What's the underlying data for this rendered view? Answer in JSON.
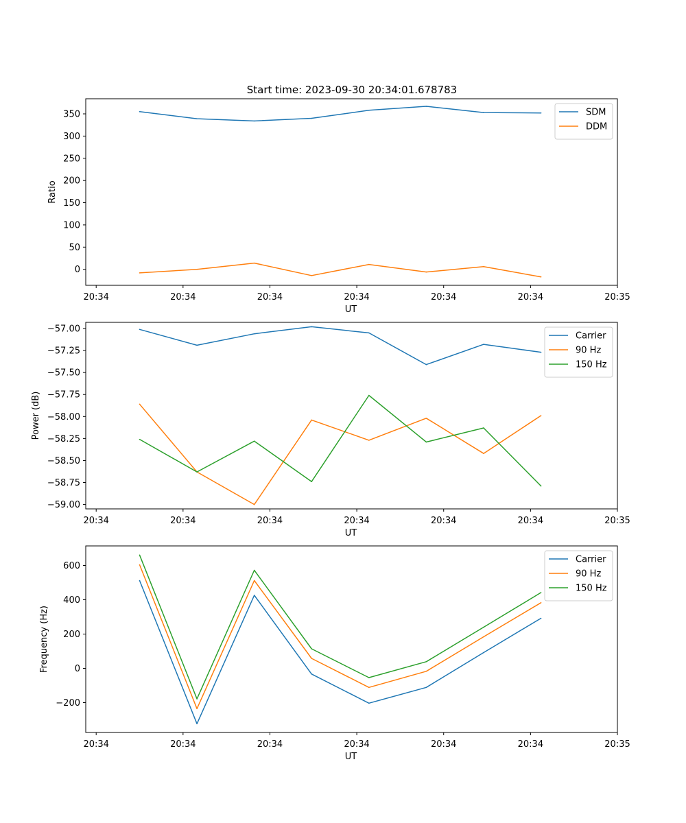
{
  "figure_title": "Start time: 2023-09-30 20:34:01.678783",
  "colors": {
    "blue": "#1f77b4",
    "orange": "#ff7f0e",
    "green": "#2ca02c",
    "axis": "#000000",
    "legend_border": "#cccccc"
  },
  "chart_data": [
    {
      "type": "line",
      "id": "ratio",
      "title": "Start time: 2023-09-30 20:34:01.678783",
      "xlabel": "UT",
      "ylabel": "Ratio",
      "x_tick_labels": [
        "20:34",
        "20:34",
        "20:34",
        "20:34",
        "20:34",
        "20:34",
        "20:35"
      ],
      "x_tick_values": [
        0,
        1,
        2,
        3,
        4,
        5,
        6
      ],
      "xlim": [
        -0.12,
        6.0
      ],
      "x": [
        0.5,
        1.16,
        1.82,
        2.48,
        3.14,
        3.8,
        4.46,
        5.12
      ],
      "ylim": [
        -36,
        384
      ],
      "yticks": [
        0,
        50,
        100,
        150,
        200,
        250,
        300,
        350
      ],
      "legend_position": "upper right",
      "series": [
        {
          "name": "SDM",
          "color": "#1f77b4",
          "values": [
            355,
            339,
            334,
            340,
            358,
            367,
            353,
            352
          ]
        },
        {
          "name": "DDM",
          "color": "#ff7f0e",
          "values": [
            -8,
            0,
            14,
            -14,
            11,
            -6,
            6,
            -17
          ]
        }
      ]
    },
    {
      "type": "line",
      "id": "power",
      "xlabel": "UT",
      "ylabel": "Power (dB)",
      "x_tick_labels": [
        "20:34",
        "20:34",
        "20:34",
        "20:34",
        "20:34",
        "20:34",
        "20:35"
      ],
      "x_tick_values": [
        0,
        1,
        2,
        3,
        4,
        5,
        6
      ],
      "xlim": [
        -0.12,
        6.0
      ],
      "x": [
        0.5,
        1.16,
        1.82,
        2.48,
        3.14,
        3.8,
        4.46,
        5.12
      ],
      "ylim": [
        -59.05,
        -56.93
      ],
      "yticks": [
        -59.0,
        -58.75,
        -58.5,
        -58.25,
        -58.0,
        -57.75,
        -57.5,
        -57.25,
        -57.0
      ],
      "ytick_labels": [
        "−59.00",
        "−58.75",
        "−58.50",
        "−58.25",
        "−58.00",
        "−57.75",
        "−57.50",
        "−57.25",
        "−57.00"
      ],
      "legend_position": "upper right",
      "series": [
        {
          "name": "Carrier",
          "color": "#1f77b4",
          "values": [
            -57.01,
            -57.19,
            -57.06,
            -56.98,
            -57.05,
            -57.41,
            -57.18,
            -57.27
          ]
        },
        {
          "name": "90 Hz",
          "color": "#ff7f0e",
          "values": [
            -57.86,
            -58.63,
            -59.0,
            -58.04,
            -58.27,
            -58.02,
            -58.42,
            -57.99
          ]
        },
        {
          "name": "150 Hz",
          "color": "#2ca02c",
          "values": [
            -58.26,
            -58.63,
            -58.28,
            -58.74,
            -57.76,
            -58.29,
            -58.13,
            -58.79
          ]
        }
      ]
    },
    {
      "type": "line",
      "id": "frequency",
      "xlabel": "UT",
      "ylabel": "Frequency (Hz)",
      "x_tick_labels": [
        "20:34",
        "20:34",
        "20:34",
        "20:34",
        "20:34",
        "20:34",
        "20:35"
      ],
      "x_tick_values": [
        0,
        1,
        2,
        3,
        4,
        5,
        6
      ],
      "xlim": [
        -0.12,
        6.0
      ],
      "x": [
        0.5,
        1.16,
        1.82,
        2.48,
        3.14,
        3.8,
        4.46,
        5.12
      ],
      "ylim": [
        -374,
        714
      ],
      "yticks": [
        -200,
        0,
        200,
        400,
        600
      ],
      "ytick_labels": [
        "−200",
        "0",
        "200",
        "400",
        "600"
      ],
      "legend_position": "upper right",
      "series": [
        {
          "name": "Carrier",
          "color": "#1f77b4",
          "values": [
            512,
            -323,
            426,
            -33,
            -203,
            -111,
            92,
            292
          ]
        },
        {
          "name": "90 Hz",
          "color": "#ff7f0e",
          "values": [
            604,
            -235,
            512,
            58,
            -111,
            -17,
            184,
            383
          ]
        },
        {
          "name": "150 Hz",
          "color": "#2ca02c",
          "values": [
            661,
            -178,
            572,
            114,
            -54,
            39,
            240,
            442
          ]
        }
      ]
    }
  ]
}
